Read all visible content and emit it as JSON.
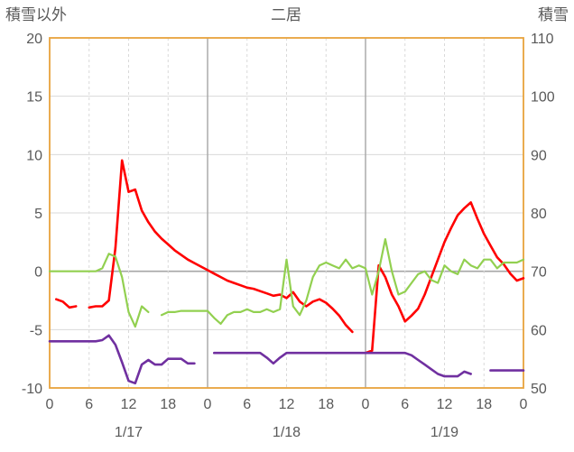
{
  "header": {
    "left_axis_title": "積雪以外",
    "chart_title": "二居",
    "right_axis_title": "積雪"
  },
  "chart_data": {
    "type": "line",
    "title": "二居",
    "left_axis_label": "積雪以外",
    "right_axis_label": "積雪",
    "left_axis": {
      "min": -10,
      "max": 20,
      "ticks": [
        20,
        15,
        10,
        5,
        0,
        -5,
        -10
      ]
    },
    "right_axis": {
      "min": 50,
      "max": 110,
      "ticks": [
        110,
        100,
        90,
        80,
        70,
        60,
        50
      ]
    },
    "x_axis": {
      "hours_total": 72,
      "tick_step": 6,
      "tick_labels": [
        "0",
        "6",
        "12",
        "18",
        "0",
        "6",
        "12",
        "18",
        "0",
        "6",
        "12",
        "18",
        "0"
      ],
      "day_labels": [
        "1/17",
        "1/18",
        "1/19"
      ],
      "day_label_centers_hours": [
        12,
        36,
        60
      ]
    },
    "style": {
      "frame_color": "#E8A33D",
      "grid_color": "#d9d9d9",
      "major_grid_color": "#a6a6a6",
      "text_color": "#595959"
    },
    "series": [
      {
        "name": "red-line",
        "axis": "left",
        "color": "#FF0000",
        "width": 2.6,
        "values": [
          null,
          -2.4,
          -2.6,
          -3.1,
          -3.0,
          null,
          -3.1,
          -3.0,
          -3.0,
          -2.5,
          2.0,
          9.5,
          6.8,
          7.0,
          5.2,
          4.2,
          3.4,
          2.8,
          2.3,
          1.8,
          1.4,
          1.0,
          0.7,
          0.4,
          0.1,
          -0.2,
          -0.5,
          -0.8,
          -1.0,
          -1.2,
          -1.4,
          -1.5,
          -1.7,
          -1.9,
          -2.1,
          -2.0,
          -2.3,
          -1.8,
          -2.6,
          -3.0,
          -2.6,
          -2.4,
          -2.7,
          -3.2,
          -3.8,
          -4.6,
          -5.2,
          null,
          -7.0,
          -6.8,
          0.5,
          -0.5,
          -2.0,
          -3.0,
          -4.3,
          -3.8,
          -3.2,
          -2.0,
          -0.5,
          1.0,
          2.5,
          3.7,
          4.8,
          5.4,
          5.9,
          4.5,
          3.2,
          2.2,
          1.2,
          0.6,
          -0.2,
          -0.8,
          -0.6
        ]
      },
      {
        "name": "green-line",
        "axis": "right",
        "color": "#92D050",
        "width": 2.2,
        "values": [
          70,
          70,
          70,
          70,
          70,
          70,
          70,
          70,
          70.5,
          73,
          72.5,
          69,
          63,
          60.5,
          64,
          63,
          null,
          62.5,
          63,
          63,
          63.2,
          63.2,
          63.2,
          63.2,
          63.2,
          62,
          61,
          62.5,
          63,
          63,
          63.5,
          63,
          63,
          63.5,
          63,
          63.5,
          72,
          64,
          62.5,
          65,
          69,
          71,
          71.5,
          71,
          70.5,
          72,
          70.5,
          71,
          70.5,
          66,
          70,
          75.5,
          70,
          66,
          66.5,
          68,
          69.5,
          70,
          68.5,
          68,
          71,
          70,
          69.5,
          72,
          71,
          70.5,
          72,
          72,
          70.5,
          71.5,
          71.5,
          71.5,
          72
        ]
      },
      {
        "name": "purple-line",
        "axis": "left",
        "color": "#7030A0",
        "width": 2.6,
        "values": [
          -6,
          -6,
          -6,
          -6,
          -6,
          -6,
          -6,
          -6,
          -5.9,
          -5.5,
          -6.3,
          -7.8,
          -9.4,
          -9.6,
          -8.0,
          -7.6,
          -8.0,
          -8.0,
          -7.5,
          -7.5,
          -7.5,
          -7.9,
          -7.9,
          null,
          null,
          -7.0,
          -7.0,
          -7.0,
          -7.0,
          -7.0,
          -7.0,
          -7.0,
          -7.0,
          -7.4,
          -7.9,
          -7.4,
          -7.0,
          -7.0,
          -7.0,
          -7.0,
          -7.0,
          -7.0,
          -7.0,
          -7.0,
          -7.0,
          -7.0,
          -7.0,
          -7.0,
          -7.0,
          -7.0,
          -7.0,
          -7.0,
          -7.0,
          -7.0,
          -7.0,
          -7.2,
          -7.6,
          -8.0,
          -8.4,
          -8.8,
          -9.0,
          -9.0,
          -9.0,
          -8.6,
          -8.8,
          null,
          null,
          -8.5,
          -8.5,
          -8.5,
          -8.5,
          -8.5,
          -8.5
        ]
      }
    ]
  }
}
